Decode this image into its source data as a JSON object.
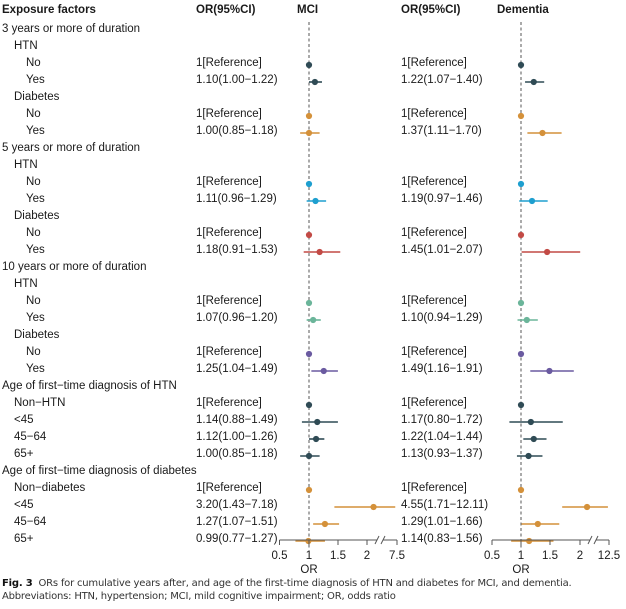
{
  "headers": {
    "exposure": "Exposure factors",
    "or_mci": "OR(95%CI)",
    "mci": "MCI",
    "or_dementia": "OR(95%CI)",
    "dementia": "Dementia"
  },
  "colors": {
    "slate": "#2f4b55",
    "orange": "#d4913a",
    "blue": "#1e9fcf",
    "red": "#c24a45",
    "teal": "#6bb59a",
    "purple": "#6a5aa0"
  },
  "caption": {
    "label": "Fig. 3",
    "text": "ORs for cumulative years after, and age of the first-time diagnosis of HTN and diabetes for MCI, and dementia. Abbreviations: HTN, hypertension; MCI, mild cognitive impairment; OR, odds ratio"
  },
  "chart_data": {
    "type": "forest",
    "title": "",
    "panels": [
      {
        "name": "MCI",
        "xlabel": "OR",
        "ticks": [
          "0.5",
          "1",
          "1.5",
          "2",
          "7.5"
        ],
        "xlim": [
          0.5,
          7.5
        ],
        "axis_break": [
          2,
          7.5
        ],
        "reference_line": 1
      },
      {
        "name": "Dementia",
        "xlabel": "OR",
        "ticks": [
          "0.5",
          "1",
          "1.5",
          "2",
          "12.5"
        ],
        "xlim": [
          0.5,
          12.5
        ],
        "axis_break": [
          2,
          12.5
        ],
        "reference_line": 1
      }
    ],
    "rows": [
      {
        "label": "3 years or more of duration",
        "level": 0
      },
      {
        "label": "HTN",
        "level": 1
      },
      {
        "label": "No",
        "level": 2,
        "color": "slate",
        "mci": {
          "text": "1[Reference]",
          "or": 1
        },
        "dementia": {
          "text": "1[Reference]",
          "or": 1
        }
      },
      {
        "label": "Yes",
        "level": 2,
        "color": "slate",
        "mci": {
          "text": "1.10(1.00−1.22)",
          "or": 1.1,
          "lo": 1.0,
          "hi": 1.22
        },
        "dementia": {
          "text": "1.22(1.07−1.40)",
          "or": 1.22,
          "lo": 1.07,
          "hi": 1.4
        }
      },
      {
        "label": "Diabetes",
        "level": 1
      },
      {
        "label": "No",
        "level": 2,
        "color": "orange",
        "mci": {
          "text": "1[Reference]",
          "or": 1
        },
        "dementia": {
          "text": "1[Reference]",
          "or": 1
        }
      },
      {
        "label": "Yes",
        "level": 2,
        "color": "orange",
        "mci": {
          "text": "1.00(0.85−1.18)",
          "or": 1.0,
          "lo": 0.85,
          "hi": 1.18
        },
        "dementia": {
          "text": "1.37(1.11−1.70)",
          "or": 1.37,
          "lo": 1.11,
          "hi": 1.7
        }
      },
      {
        "label": "5 years or more of duration",
        "level": 0
      },
      {
        "label": "HTN",
        "level": 1
      },
      {
        "label": "No",
        "level": 2,
        "color": "blue",
        "mci": {
          "text": "1[Reference]",
          "or": 1
        },
        "dementia": {
          "text": "1[Reference]",
          "or": 1
        }
      },
      {
        "label": "Yes",
        "level": 2,
        "color": "blue",
        "mci": {
          "text": "1.11(0.96−1.29)",
          "or": 1.11,
          "lo": 0.96,
          "hi": 1.29
        },
        "dementia": {
          "text": "1.19(0.97−1.46)",
          "or": 1.19,
          "lo": 0.97,
          "hi": 1.46
        }
      },
      {
        "label": "Diabetes",
        "level": 1
      },
      {
        "label": "No",
        "level": 2,
        "color": "red",
        "mci": {
          "text": "1[Reference]",
          "or": 1
        },
        "dementia": {
          "text": "1[Reference]",
          "or": 1
        }
      },
      {
        "label": "Yes",
        "level": 2,
        "color": "red",
        "mci": {
          "text": "1.18(0.91−1.53)",
          "or": 1.18,
          "lo": 0.91,
          "hi": 1.53
        },
        "dementia": {
          "text": "1.45(1.01−2.07)",
          "or": 1.45,
          "lo": 1.01,
          "hi": 2.07
        }
      },
      {
        "label": "10 years or more of duration",
        "level": 0
      },
      {
        "label": "HTN",
        "level": 1
      },
      {
        "label": "No",
        "level": 2,
        "color": "teal",
        "mci": {
          "text": "1[Reference]",
          "or": 1
        },
        "dementia": {
          "text": "1[Reference]",
          "or": 1
        }
      },
      {
        "label": "Yes",
        "level": 2,
        "color": "teal",
        "mci": {
          "text": "1.07(0.96−1.20)",
          "or": 1.07,
          "lo": 0.96,
          "hi": 1.2
        },
        "dementia": {
          "text": "1.10(0.94−1.29)",
          "or": 1.1,
          "lo": 0.94,
          "hi": 1.29
        }
      },
      {
        "label": "Diabetes",
        "level": 1
      },
      {
        "label": "No",
        "level": 2,
        "color": "purple",
        "mci": {
          "text": "1[Reference]",
          "or": 1
        },
        "dementia": {
          "text": "1[Reference]",
          "or": 1
        }
      },
      {
        "label": "Yes",
        "level": 2,
        "color": "purple",
        "mci": {
          "text": "1.25(1.04−1.49)",
          "or": 1.25,
          "lo": 1.04,
          "hi": 1.49
        },
        "dementia": {
          "text": "1.49(1.16−1.91)",
          "or": 1.49,
          "lo": 1.16,
          "hi": 1.91
        }
      },
      {
        "label": "Age of first−time diagnosis of HTN",
        "level": 0
      },
      {
        "label": "Non−HTN",
        "level": 1,
        "color": "slate",
        "mci": {
          "text": "1[Reference]",
          "or": 1
        },
        "dementia": {
          "text": "1[Reference]",
          "or": 1
        }
      },
      {
        "label": "<45",
        "level": 1,
        "color": "slate",
        "mci": {
          "text": "1.14(0.88−1.49)",
          "or": 1.14,
          "lo": 0.88,
          "hi": 1.49
        },
        "dementia": {
          "text": "1.17(0.80−1.72)",
          "or": 1.17,
          "lo": 0.8,
          "hi": 1.72
        }
      },
      {
        "label": "45−64",
        "level": 1,
        "color": "slate",
        "mci": {
          "text": "1.12(1.00−1.26)",
          "or": 1.12,
          "lo": 1.0,
          "hi": 1.26
        },
        "dementia": {
          "text": "1.22(1.04−1.44)",
          "or": 1.22,
          "lo": 1.04,
          "hi": 1.44
        }
      },
      {
        "label": "65+",
        "level": 1,
        "color": "slate",
        "mci": {
          "text": "1.00(0.85−1.18)",
          "or": 1.0,
          "lo": 0.85,
          "hi": 1.18
        },
        "dementia": {
          "text": "1.13(0.93−1.37)",
          "or": 1.13,
          "lo": 0.93,
          "hi": 1.37
        }
      },
      {
        "label": "Age of first−time diagnosis of diabetes",
        "level": 0
      },
      {
        "label": "Non−diabetes",
        "level": 1,
        "color": "orange",
        "mci": {
          "text": "1[Reference]",
          "or": 1
        },
        "dementia": {
          "text": "1[Reference]",
          "or": 1
        }
      },
      {
        "label": "<45",
        "level": 1,
        "color": "orange",
        "mci": {
          "text": "3.20(1.43−7.18)",
          "or": 3.2,
          "lo": 1.43,
          "hi": 7.18
        },
        "dementia": {
          "text": "4.55(1.71−12.11)",
          "or": 4.55,
          "lo": 1.71,
          "hi": 12.11
        }
      },
      {
        "label": "45−64",
        "level": 1,
        "color": "orange",
        "mci": {
          "text": "1.27(1.07−1.51)",
          "or": 1.27,
          "lo": 1.07,
          "hi": 1.51
        },
        "dementia": {
          "text": "1.29(1.01−1.66)",
          "or": 1.29,
          "lo": 1.01,
          "hi": 1.66
        }
      },
      {
        "label": "65+",
        "level": 1,
        "color": "orange",
        "mci": {
          "text": "0.99(0.77−1.27)",
          "or": 0.99,
          "lo": 0.77,
          "hi": 1.27
        },
        "dementia": {
          "text": "1.14(0.83−1.56)",
          "or": 1.14,
          "lo": 0.83,
          "hi": 1.56
        }
      }
    ]
  }
}
